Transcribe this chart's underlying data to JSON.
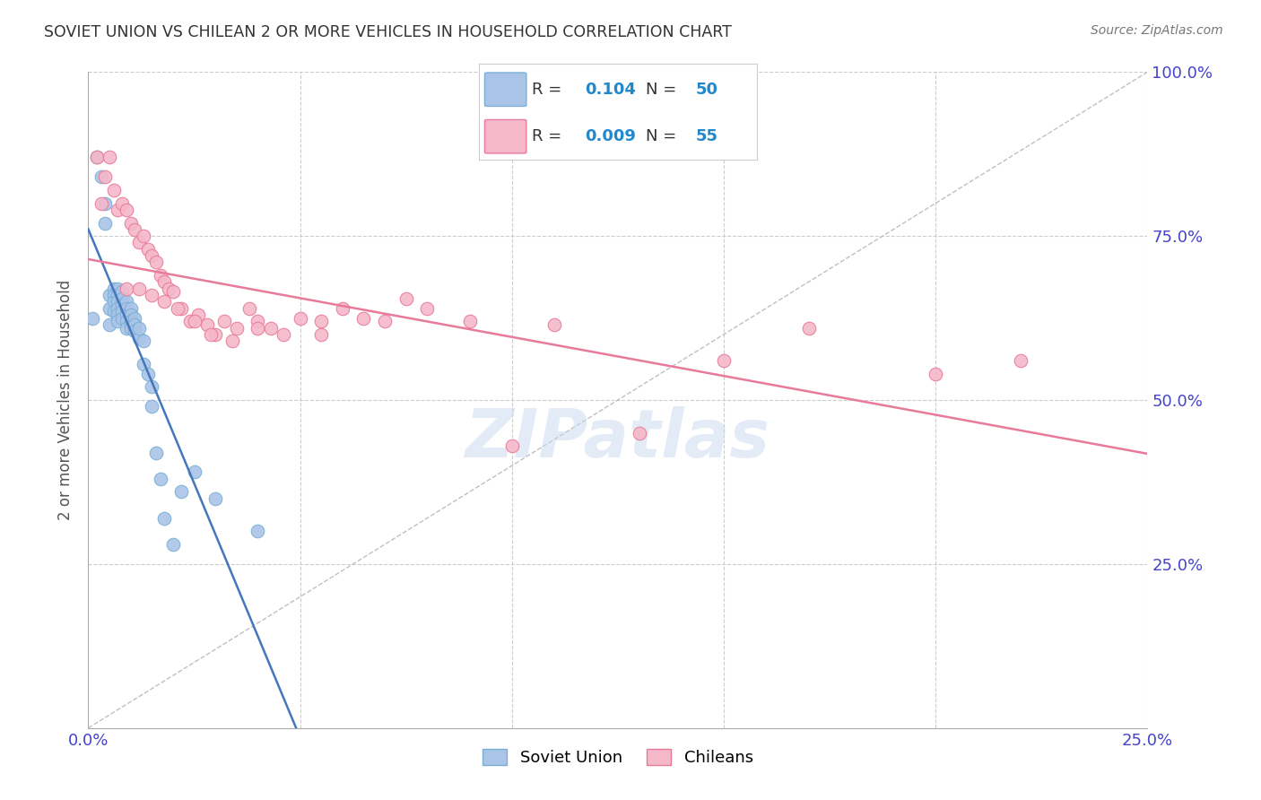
{
  "title": "SOVIET UNION VS CHILEAN 2 OR MORE VEHICLES IN HOUSEHOLD CORRELATION CHART",
  "source": "Source: ZipAtlas.com",
  "ylabel": "2 or more Vehicles in Household",
  "xlim": [
    0.0,
    0.25
  ],
  "ylim": [
    0.0,
    1.0
  ],
  "soviet_R": 0.104,
  "soviet_N": 50,
  "chilean_R": 0.009,
  "chilean_N": 55,
  "soviet_color": "#aac4e8",
  "soviet_edge": "#7aafd4",
  "chilean_color": "#f5b8ca",
  "chilean_edge": "#e87a9a",
  "soviet_line_color": "#4477bb",
  "chilean_line_color": "#e87a9a",
  "ref_line_color": "#c0c0c0",
  "background_color": "#ffffff",
  "grid_color": "#cccccc",
  "axis_label_color": "#4444cc",
  "title_color": "#333333",
  "watermark_color": "#c8d8f0",
  "watermark": "ZIPatlas",
  "marker_size": 110,
  "soviet_x": [
    0.001,
    0.002,
    0.003,
    0.004,
    0.004,
    0.005,
    0.005,
    0.005,
    0.006,
    0.006,
    0.006,
    0.006,
    0.007,
    0.007,
    0.007,
    0.007,
    0.007,
    0.007,
    0.008,
    0.008,
    0.008,
    0.008,
    0.008,
    0.009,
    0.009,
    0.009,
    0.009,
    0.009,
    0.01,
    0.01,
    0.01,
    0.01,
    0.011,
    0.011,
    0.011,
    0.012,
    0.012,
    0.013,
    0.013,
    0.014,
    0.015,
    0.015,
    0.016,
    0.017,
    0.018,
    0.02,
    0.022,
    0.025,
    0.03,
    0.04
  ],
  "soviet_y": [
    0.625,
    0.87,
    0.84,
    0.8,
    0.77,
    0.66,
    0.64,
    0.615,
    0.67,
    0.66,
    0.65,
    0.635,
    0.67,
    0.66,
    0.65,
    0.64,
    0.63,
    0.62,
    0.665,
    0.655,
    0.645,
    0.635,
    0.625,
    0.65,
    0.64,
    0.63,
    0.62,
    0.61,
    0.64,
    0.63,
    0.62,
    0.61,
    0.625,
    0.615,
    0.605,
    0.595,
    0.61,
    0.555,
    0.59,
    0.54,
    0.52,
    0.49,
    0.42,
    0.38,
    0.32,
    0.28,
    0.36,
    0.39,
    0.35,
    0.3
  ],
  "chilean_x": [
    0.002,
    0.003,
    0.004,
    0.005,
    0.006,
    0.007,
    0.008,
    0.009,
    0.01,
    0.011,
    0.012,
    0.013,
    0.014,
    0.015,
    0.016,
    0.017,
    0.018,
    0.019,
    0.02,
    0.022,
    0.024,
    0.026,
    0.028,
    0.03,
    0.032,
    0.035,
    0.038,
    0.04,
    0.043,
    0.046,
    0.05,
    0.055,
    0.06,
    0.065,
    0.07,
    0.08,
    0.09,
    0.1,
    0.11,
    0.13,
    0.15,
    0.17,
    0.2,
    0.22,
    0.009,
    0.012,
    0.015,
    0.018,
    0.021,
    0.025,
    0.029,
    0.034,
    0.04,
    0.055,
    0.075
  ],
  "chilean_y": [
    0.87,
    0.8,
    0.84,
    0.87,
    0.82,
    0.79,
    0.8,
    0.79,
    0.77,
    0.76,
    0.74,
    0.75,
    0.73,
    0.72,
    0.71,
    0.69,
    0.68,
    0.67,
    0.665,
    0.64,
    0.62,
    0.63,
    0.615,
    0.6,
    0.62,
    0.61,
    0.64,
    0.62,
    0.61,
    0.6,
    0.625,
    0.62,
    0.64,
    0.625,
    0.62,
    0.64,
    0.62,
    0.43,
    0.615,
    0.45,
    0.56,
    0.61,
    0.54,
    0.56,
    0.67,
    0.67,
    0.66,
    0.65,
    0.64,
    0.62,
    0.6,
    0.59,
    0.61,
    0.6,
    0.655
  ]
}
